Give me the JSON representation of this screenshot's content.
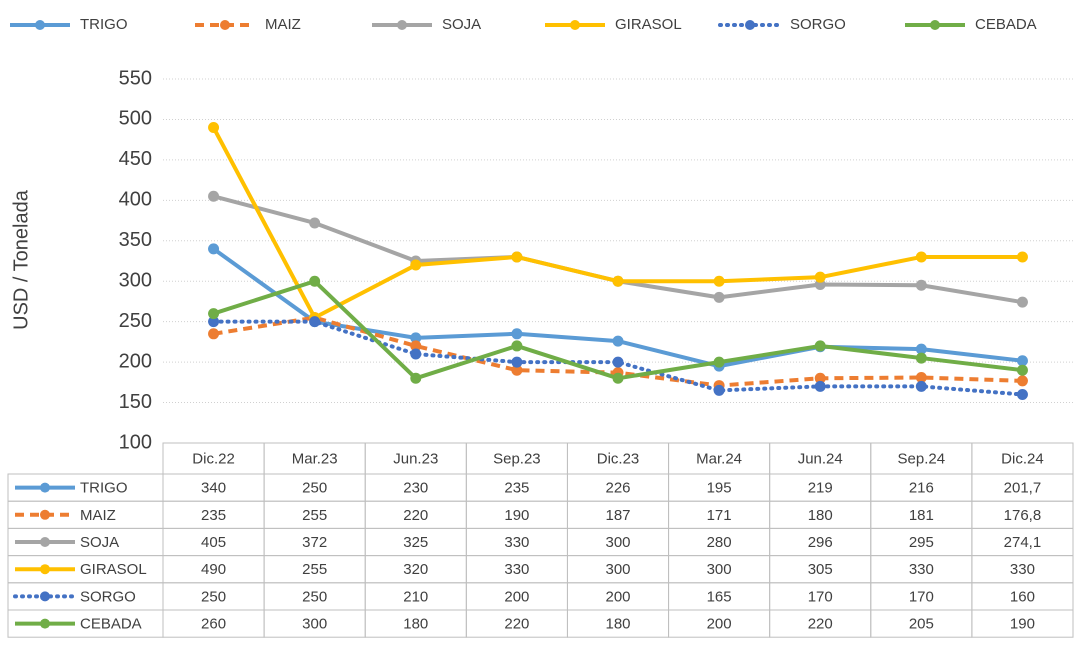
{
  "chart_data": {
    "type": "line",
    "ylabel": "USD / Tonelada",
    "categories": [
      "Dic.22",
      "Mar.23",
      "Jun.23",
      "Sep.23",
      "Dic.23",
      "Mar.24",
      "Jun.24",
      "Sep.24",
      "Dic.24"
    ],
    "ylim": [
      100,
      550
    ],
    "yticks": [
      100,
      150,
      200,
      250,
      300,
      350,
      400,
      450,
      500,
      550
    ],
    "grid": true,
    "legend": "top",
    "series": [
      {
        "name": "TRIGO",
        "color": "#5b9bd5",
        "dash": "solid",
        "values": [
          340,
          250,
          230,
          235,
          226,
          195,
          219,
          216,
          201.7
        ],
        "value_labels": [
          "340",
          "250",
          "230",
          "235",
          "226",
          "195",
          "219",
          "216",
          "201,7"
        ]
      },
      {
        "name": "MAIZ",
        "color": "#ed7d31",
        "dash": "dash",
        "values": [
          235,
          255,
          220,
          190,
          187,
          171,
          180,
          181,
          176.8
        ],
        "value_labels": [
          "235",
          "255",
          "220",
          "190",
          "187",
          "171",
          "180",
          "181",
          "176,8"
        ]
      },
      {
        "name": "SOJA",
        "color": "#a5a5a5",
        "dash": "solid",
        "values": [
          405,
          372,
          325,
          330,
          300,
          280,
          296,
          295,
          274.1
        ],
        "value_labels": [
          "405",
          "372",
          "325",
          "330",
          "300",
          "280",
          "296",
          "295",
          "274,1"
        ]
      },
      {
        "name": "GIRASOL",
        "color": "#ffc000",
        "dash": "solid",
        "values": [
          490,
          255,
          320,
          330,
          300,
          300,
          305,
          330,
          330
        ],
        "value_labels": [
          "490",
          "255",
          "320",
          "330",
          "300",
          "300",
          "305",
          "330",
          "330"
        ]
      },
      {
        "name": "SORGO",
        "color": "#4472c4",
        "dash": "dot",
        "values": [
          250,
          250,
          210,
          200,
          200,
          165,
          170,
          170,
          160
        ],
        "value_labels": [
          "250",
          "250",
          "210",
          "200",
          "200",
          "165",
          "170",
          "170",
          "160"
        ]
      },
      {
        "name": "CEBADA",
        "color": "#70ad47",
        "dash": "solid",
        "values": [
          260,
          300,
          180,
          220,
          180,
          200,
          220,
          205,
          190
        ],
        "value_labels": [
          "260",
          "300",
          "180",
          "220",
          "180",
          "200",
          "220",
          "205",
          "190"
        ]
      }
    ]
  }
}
